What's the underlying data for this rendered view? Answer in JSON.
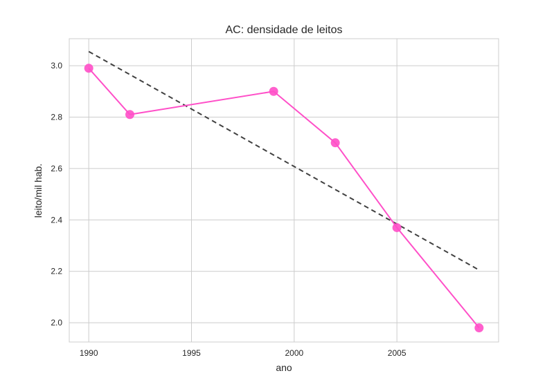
{
  "chart_data": {
    "type": "line",
    "title": "AC: densidade de leitos",
    "xlabel": "ano",
    "ylabel": "leito/mil hab.",
    "xlim": [
      1989.05,
      2009.95
    ],
    "ylim": [
      1.925,
      3.105
    ],
    "xticks": [
      1990,
      1995,
      2000,
      2005
    ],
    "yticks": [
      2.0,
      2.2,
      2.4,
      2.6,
      2.8,
      3.0
    ],
    "xtick_labels": [
      "1990",
      "1995",
      "2000",
      "2005"
    ],
    "ytick_labels": [
      "2.0",
      "2.2",
      "2.4",
      "2.6",
      "2.8",
      "3.0"
    ],
    "grid": true,
    "series": [
      {
        "kind": "line-markers",
        "color": "#ff4fc8",
        "x": [
          1990,
          1992,
          1999,
          2002,
          2005,
          2009
        ],
        "y": [
          2.99,
          2.81,
          2.9,
          2.7,
          2.37,
          1.98
        ]
      },
      {
        "kind": "trend-dashed",
        "color": "#404040",
        "x": [
          1990,
          2009
        ],
        "y": [
          3.055,
          2.205
        ]
      }
    ]
  }
}
